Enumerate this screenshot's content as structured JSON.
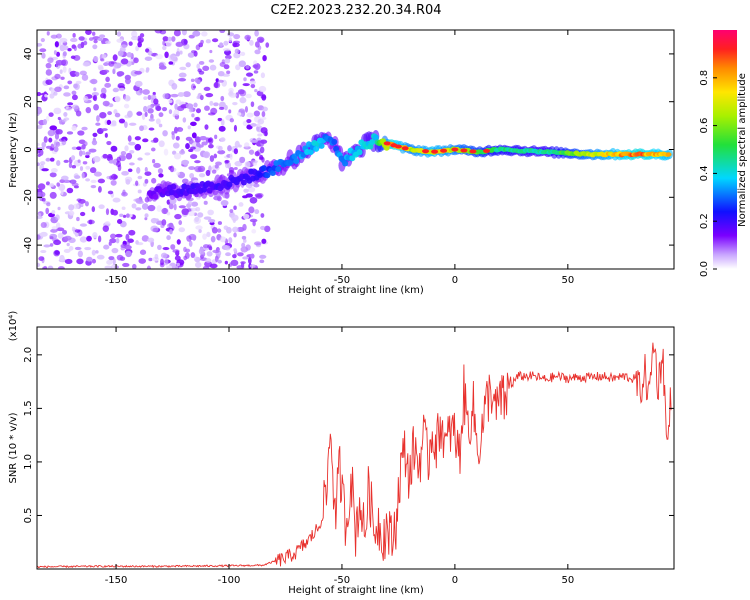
{
  "title": "C2E2.2023.232.20.34.R04",
  "chart_data": [
    {
      "type": "heatmap",
      "xlabel": "Height of straight line (km)",
      "ylabel": "Frequency (Hz)",
      "xlim": [
        -185,
        97
      ],
      "ylim": [
        -50,
        50
      ],
      "xticks": [
        -150,
        -100,
        -50,
        0,
        50
      ],
      "yticks": [
        -40,
        -20,
        0,
        20,
        40
      ],
      "xtick_labels": [
        "-150",
        "-100",
        "-50",
        "0",
        "50"
      ],
      "ytick_labels": [
        "-40",
        "-20",
        "0",
        "20",
        "40"
      ],
      "colorbar": {
        "label": "Normalized spectral amplitude",
        "range": [
          0,
          1
        ],
        "ticks": [
          0.0,
          0.2,
          0.4,
          0.6,
          0.8
        ],
        "tick_labels": [
          "0.0",
          "0.2",
          "0.4",
          "0.6",
          "0.8"
        ],
        "colormap": "rainbow (white-purple-blue-cyan-green-yellow-red-magenta)"
      },
      "noise_region": {
        "x_range": [
          -185,
          -83
        ],
        "amplitude": [
          0.02,
          0.15
        ]
      },
      "ridge": [
        {
          "x": -135,
          "y": -18,
          "amp": 0.15
        },
        {
          "x": -120,
          "y": -17,
          "amp": 0.2
        },
        {
          "x": -100,
          "y": -14,
          "amp": 0.2
        },
        {
          "x": -90,
          "y": -11,
          "amp": 0.2
        },
        {
          "x": -80,
          "y": -8,
          "amp": 0.3
        },
        {
          "x": -70,
          "y": -3,
          "amp": 0.35
        },
        {
          "x": -60,
          "y": 3,
          "amp": 0.4
        },
        {
          "x": -55,
          "y": 5,
          "amp": 0.3
        },
        {
          "x": -50,
          "y": -5,
          "amp": 0.35
        },
        {
          "x": -40,
          "y": 2,
          "amp": 0.4
        },
        {
          "x": -35,
          "y": 4,
          "amp": 0.4
        },
        {
          "x": -28,
          "y": 2,
          "amp": 0.9
        },
        {
          "x": -20,
          "y": 0,
          "amp": 0.7
        },
        {
          "x": -10,
          "y": -1,
          "amp": 0.8
        },
        {
          "x": 0,
          "y": 0,
          "amp": 0.7
        },
        {
          "x": 10,
          "y": -1,
          "amp": 0.6
        },
        {
          "x": 20,
          "y": 0,
          "amp": 0.5
        },
        {
          "x": 40,
          "y": -1,
          "amp": 0.45
        },
        {
          "x": 60,
          "y": -2,
          "amp": 0.7
        },
        {
          "x": 80,
          "y": -2,
          "amp": 0.9
        },
        {
          "x": 95,
          "y": -2,
          "amp": 0.8
        }
      ]
    },
    {
      "type": "line",
      "xlabel": "Height of straight line (km)",
      "ylabel": "SNR (10 * v/v)",
      "y_multiplier": "(x10⁴)",
      "xlim": [
        -185,
        97
      ],
      "ylim": [
        0,
        22600
      ],
      "xticks": [
        -150,
        -100,
        -50,
        0,
        50
      ],
      "yticks": [
        5000,
        10000,
        15000,
        20000
      ],
      "xtick_labels": [
        "-150",
        "-100",
        "-50",
        "0",
        "50"
      ],
      "ytick_labels": [
        "0.5",
        "1.0",
        "1.5",
        "2.0"
      ],
      "series": [
        {
          "color": "#e8312d",
          "x": [
            -185,
            -160,
            -130,
            -100,
            -85,
            -80,
            -75,
            -70,
            -65,
            -60,
            -57,
            -55,
            -53,
            -51,
            -50,
            -48,
            -46,
            -44,
            -42,
            -40,
            -38,
            -36,
            -34,
            -32,
            -30,
            -28,
            -26,
            -24,
            -22,
            -20,
            -18,
            -16,
            -14,
            -12,
            -10,
            -8,
            -6,
            -4,
            -2,
            0,
            2,
            4,
            6,
            8,
            10,
            12,
            14,
            16,
            18,
            20,
            22,
            24,
            26,
            28,
            30,
            35,
            40,
            45,
            50,
            55,
            60,
            65,
            70,
            75,
            80,
            82,
            84,
            86,
            88,
            90,
            92,
            94,
            96
          ],
          "y": [
            200,
            250,
            250,
            300,
            350,
            700,
            1000,
            1600,
            2600,
            4000,
            6500,
            13500,
            4500,
            9500,
            7000,
            4000,
            9000,
            3500,
            6500,
            3000,
            8000,
            3500,
            4500,
            3000,
            4000,
            2500,
            4500,
            9500,
            11000,
            8500,
            11500,
            9500,
            12500,
            10000,
            13000,
            11500,
            14000,
            11000,
            13000,
            12500,
            10500,
            16500,
            13000,
            15500,
            11000,
            13000,
            15500,
            17000,
            14500,
            16000,
            15500,
            17000,
            17500,
            18000,
            18000,
            18000,
            17700,
            18000,
            17800,
            17900,
            17900,
            18000,
            17800,
            18000,
            17700,
            16500,
            18500,
            16000,
            21500,
            17000,
            20500,
            11000,
            17500
          ]
        }
      ]
    }
  ]
}
